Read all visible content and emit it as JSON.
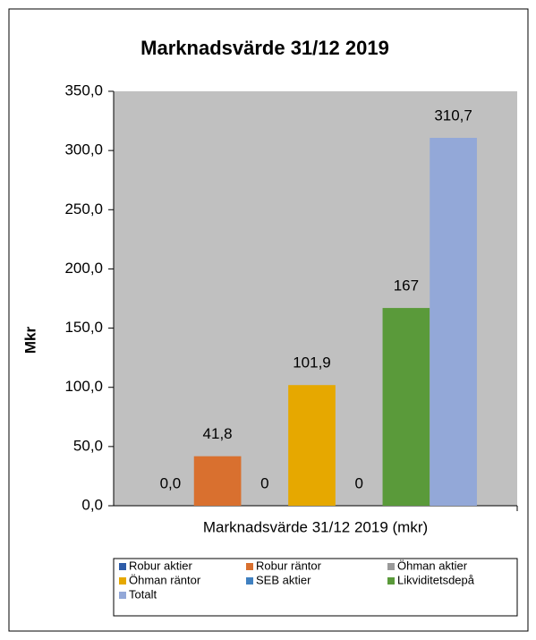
{
  "chart_data": {
    "type": "bar",
    "title": "Marknadsvärde 31/12 2019",
    "y_label": "Mkr",
    "categories": [
      "Marknadsvärde 31/12 2019 (mkr)"
    ],
    "series": [
      {
        "name": "Robur aktier",
        "color": "#2e5ca8",
        "values": [
          0
        ],
        "value_labels": [
          "0,0"
        ]
      },
      {
        "name": "Robur räntor",
        "color": "#d9702f",
        "values": [
          41.8
        ],
        "value_labels": [
          "41,8"
        ]
      },
      {
        "name": "Öhman aktier",
        "color": "#9a9a9a",
        "values": [
          0
        ],
        "value_labels": [
          "0"
        ]
      },
      {
        "name": "Öhman räntor",
        "color": "#e6a800",
        "values": [
          101.9
        ],
        "value_labels": [
          "101,9"
        ]
      },
      {
        "name": "SEB aktier",
        "color": "#3f80c0",
        "values": [
          0
        ],
        "value_labels": [
          "0"
        ]
      },
      {
        "name": "Likviditetsdepå",
        "color": "#5a9a3a",
        "values": [
          167
        ],
        "value_labels": [
          "167"
        ]
      },
      {
        "name": "Totalt",
        "color": "#93a8d8",
        "values": [
          310.7
        ],
        "value_labels": [
          "310,7"
        ]
      }
    ],
    "ylim": [
      0,
      350
    ],
    "yticks": [
      {
        "value": 0,
        "label": "0,0"
      },
      {
        "value": 50,
        "label": "50,0"
      },
      {
        "value": 100,
        "label": "100,0"
      },
      {
        "value": 150,
        "label": "150,0"
      },
      {
        "value": 200,
        "label": "200,0"
      },
      {
        "value": 250,
        "label": "250,0"
      },
      {
        "value": 300,
        "label": "300,0"
      },
      {
        "value": 350,
        "label": "350,0"
      }
    ],
    "legend": "bottom"
  }
}
